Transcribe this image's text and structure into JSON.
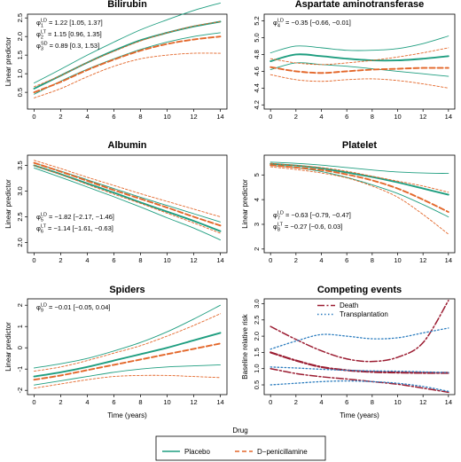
{
  "chart_data": [
    {
      "type": "line",
      "title": "Bilirubin",
      "xlabel": "",
      "ylabel": "Linear predictor",
      "xlim": [
        -0.5,
        14.5
      ],
      "ylim": [
        0.05,
        2.6
      ],
      "xticks": [
        0,
        2,
        4,
        6,
        8,
        10,
        12,
        14
      ],
      "yticks": [
        0.5,
        1.0,
        1.5,
        2.0,
        2.5
      ],
      "annotations": [
        {
          "sym": "φ",
          "sub": "1",
          "sup": "LD",
          "text": " = 1.22 [1.05, 1.37]"
        },
        {
          "sym": "φ",
          "sub": "2",
          "sup": "LT",
          "text": " = 1.15 [0.96, 1.35]"
        },
        {
          "sym": "φ",
          "sub": "3",
          "sup": "SD",
          "text": " = 0.89 [0.3, 1.53]"
        }
      ],
      "x": [
        0,
        2,
        4,
        6,
        8,
        10,
        12,
        14
      ],
      "series": [
        {
          "role": "placebo",
          "values": [
            0.6,
            0.95,
            1.3,
            1.62,
            1.9,
            2.1,
            2.27,
            2.4
          ]
        },
        {
          "role": "placebo",
          "values": [
            0.75,
            1.12,
            1.5,
            1.85,
            2.18,
            2.45,
            2.7,
            2.9
          ]
        },
        {
          "role": "placebo",
          "values": [
            0.45,
            0.8,
            1.12,
            1.4,
            1.65,
            1.85,
            2.0,
            2.1
          ]
        },
        {
          "role": "penicillamine",
          "values": [
            0.5,
            0.78,
            1.1,
            1.38,
            1.62,
            1.8,
            1.92,
            2.0
          ]
        },
        {
          "role": "penicillamine",
          "values": [
            0.65,
            0.95,
            1.3,
            1.6,
            1.88,
            2.1,
            2.28,
            2.4
          ]
        },
        {
          "role": "penicillamine",
          "values": [
            0.35,
            0.6,
            0.92,
            1.2,
            1.4,
            1.5,
            1.55,
            1.55
          ]
        }
      ]
    },
    {
      "type": "line",
      "title": "Aspartate aminotransferase",
      "xlabel": "",
      "ylabel": "",
      "xlim": [
        -0.5,
        14.5
      ],
      "ylim": [
        4.15,
        5.28
      ],
      "xticks": [
        0,
        2,
        4,
        6,
        8,
        10,
        12,
        14
      ],
      "yticks": [
        4.2,
        4.4,
        4.6,
        4.8,
        5.0,
        5.2
      ],
      "annotations": [
        {
          "sym": "φ",
          "sub": "4",
          "sup": "LD",
          "text": " = −0.35 [−0.66, −0.01]"
        }
      ],
      "x": [
        0,
        2,
        4,
        6,
        8,
        10,
        12,
        14
      ],
      "series": [
        {
          "role": "placebo",
          "values": [
            4.72,
            4.8,
            4.78,
            4.75,
            4.73,
            4.73,
            4.75,
            4.78
          ]
        },
        {
          "role": "placebo",
          "values": [
            4.82,
            4.9,
            4.88,
            4.85,
            4.85,
            4.87,
            4.93,
            5.02
          ]
        },
        {
          "role": "placebo",
          "values": [
            4.62,
            4.7,
            4.68,
            4.66,
            4.63,
            4.6,
            4.57,
            4.54
          ]
        },
        {
          "role": "penicillamine",
          "values": [
            4.65,
            4.6,
            4.58,
            4.6,
            4.62,
            4.63,
            4.64,
            4.64
          ]
        },
        {
          "role": "penicillamine",
          "values": [
            4.75,
            4.7,
            4.68,
            4.7,
            4.73,
            4.77,
            4.82,
            4.88
          ]
        },
        {
          "role": "penicillamine",
          "values": [
            4.56,
            4.5,
            4.48,
            4.5,
            4.51,
            4.49,
            4.45,
            4.4
          ]
        }
      ]
    },
    {
      "type": "line",
      "title": "Albumin",
      "xlabel": "",
      "ylabel": "Linear predictor",
      "xlim": [
        -0.5,
        14.5
      ],
      "ylim": [
        1.8,
        3.7
      ],
      "xticks": [
        0,
        2,
        4,
        6,
        8,
        10,
        12,
        14
      ],
      "yticks": [
        2.0,
        2.5,
        3.0,
        3.5
      ],
      "annotations": [
        {
          "sym": "φ",
          "sub": "5",
          "sup": "LD",
          "text": " = −1.82 [−2.17, −1.46]"
        },
        {
          "sym": "φ",
          "sub": "6",
          "sup": "LT",
          "text": " = −1.14 [−1.61, −0.63]"
        }
      ],
      "x": [
        0,
        2,
        4,
        6,
        8,
        10,
        12,
        14
      ],
      "series": [
        {
          "role": "placebo",
          "values": [
            3.5,
            3.33,
            3.15,
            2.97,
            2.78,
            2.6,
            2.42,
            2.22
          ]
        },
        {
          "role": "placebo",
          "values": [
            3.55,
            3.39,
            3.22,
            3.05,
            2.88,
            2.72,
            2.56,
            2.4
          ]
        },
        {
          "role": "placebo",
          "values": [
            3.45,
            3.27,
            3.08,
            2.89,
            2.69,
            2.48,
            2.28,
            2.05
          ]
        },
        {
          "role": "penicillamine",
          "values": [
            3.55,
            3.38,
            3.2,
            3.02,
            2.85,
            2.68,
            2.5,
            2.33
          ]
        },
        {
          "role": "penicillamine",
          "values": [
            3.6,
            3.44,
            3.27,
            3.11,
            2.95,
            2.8,
            2.65,
            2.5
          ]
        },
        {
          "role": "penicillamine",
          "values": [
            3.5,
            3.32,
            3.13,
            2.94,
            2.76,
            2.57,
            2.38,
            2.18
          ]
        }
      ]
    },
    {
      "type": "line",
      "title": "Platelet",
      "xlabel": "",
      "ylabel": "Linear predictor",
      "xlim": [
        -0.5,
        14.5
      ],
      "ylim": [
        1.85,
        5.8
      ],
      "xticks": [
        0,
        2,
        4,
        6,
        8,
        10,
        12,
        14
      ],
      "yticks": [
        2,
        3,
        4,
        5
      ],
      "annotations": [
        {
          "sym": "φ",
          "sub": "7",
          "sup": "LD",
          "text": " = −0.63 [−0.79, −0.47]"
        },
        {
          "sym": "φ",
          "sub": "8",
          "sup": "LT",
          "text": " = −0.27 [−0.6, 0.03]"
        }
      ],
      "x": [
        0,
        2,
        4,
        6,
        8,
        10,
        12,
        14
      ],
      "series": [
        {
          "role": "placebo",
          "values": [
            5.45,
            5.38,
            5.27,
            5.1,
            4.92,
            4.7,
            4.45,
            4.2
          ]
        },
        {
          "role": "placebo",
          "values": [
            5.52,
            5.47,
            5.4,
            5.3,
            5.2,
            5.12,
            5.08,
            5.06
          ]
        },
        {
          "role": "placebo",
          "values": [
            5.38,
            5.29,
            5.14,
            4.9,
            4.6,
            4.25,
            3.8,
            3.3
          ]
        },
        {
          "role": "penicillamine",
          "values": [
            5.4,
            5.3,
            5.2,
            5.02,
            4.78,
            4.45,
            4.0,
            3.5
          ]
        },
        {
          "role": "penicillamine",
          "values": [
            5.47,
            5.39,
            5.3,
            5.15,
            4.95,
            4.75,
            4.55,
            4.3
          ]
        },
        {
          "role": "penicillamine",
          "values": [
            5.33,
            5.22,
            5.08,
            4.88,
            4.55,
            4.1,
            3.4,
            2.6
          ]
        }
      ]
    },
    {
      "type": "line",
      "title": "Spiders",
      "xlabel": "Time (years)",
      "ylabel": "Linear predictor",
      "xlim": [
        -0.5,
        14.5
      ],
      "ylim": [
        -2.2,
        2.3
      ],
      "xticks": [
        0,
        2,
        4,
        6,
        8,
        10,
        12,
        14
      ],
      "yticks": [
        -2,
        -1,
        0,
        1,
        2
      ],
      "annotations": [
        {
          "sym": "φ",
          "sub": "9",
          "sup": "LD",
          "text": " = −0.01 [−0.05, 0.04]"
        }
      ],
      "x": [
        0,
        2,
        4,
        6,
        8,
        10,
        12,
        14
      ],
      "series": [
        {
          "role": "placebo",
          "values": [
            -1.35,
            -1.15,
            -0.9,
            -0.6,
            -0.3,
            0.0,
            0.35,
            0.7
          ]
        },
        {
          "role": "placebo",
          "values": [
            -0.95,
            -0.75,
            -0.5,
            -0.15,
            0.25,
            0.75,
            1.35,
            2.0
          ]
        },
        {
          "role": "placebo",
          "values": [
            -1.75,
            -1.55,
            -1.35,
            -1.15,
            -1.0,
            -0.9,
            -0.85,
            -0.8
          ]
        },
        {
          "role": "penicillamine",
          "values": [
            -1.5,
            -1.3,
            -1.05,
            -0.8,
            -0.55,
            -0.3,
            -0.05,
            0.2
          ]
        },
        {
          "role": "penicillamine",
          "values": [
            -1.1,
            -0.9,
            -0.6,
            -0.25,
            0.1,
            0.55,
            1.05,
            1.6
          ]
        },
        {
          "role": "penicillamine",
          "values": [
            -1.9,
            -1.7,
            -1.5,
            -1.35,
            -1.3,
            -1.3,
            -1.35,
            -1.4
          ]
        }
      ]
    },
    {
      "type": "line",
      "title": "Competing events",
      "xlabel": "Time (years)",
      "ylabel": "Baseline relative risk",
      "xlim": [
        -0.5,
        14.5
      ],
      "ylim": [
        0.2,
        3.15
      ],
      "xticks": [
        0,
        2,
        4,
        6,
        8,
        10,
        12,
        14
      ],
      "yticks": [
        0.5,
        1.0,
        1.5,
        2.0,
        2.5,
        3.0
      ],
      "legend": [
        "Death",
        "Transplantation"
      ],
      "legend_position": "top",
      "x": [
        0,
        2,
        4,
        6,
        8,
        10,
        12,
        14
      ],
      "series": [
        {
          "name": "Death",
          "role": "death",
          "values": [
            1.5,
            1.25,
            1.05,
            0.95,
            0.9,
            0.88,
            0.87,
            0.87
          ]
        },
        {
          "name": "Death",
          "role": "death",
          "values": [
            2.3,
            1.9,
            1.55,
            1.3,
            1.22,
            1.35,
            1.8,
            3.1
          ]
        },
        {
          "name": "Death",
          "role": "death",
          "values": [
            1.0,
            0.85,
            0.75,
            0.68,
            0.6,
            0.52,
            0.4,
            0.27
          ]
        },
        {
          "name": "Transplantation",
          "role": "transplant",
          "values": [
            1.05,
            1.02,
            0.98,
            0.95,
            0.93,
            0.92,
            0.9,
            0.88
          ]
        },
        {
          "name": "Transplantation",
          "role": "transplant",
          "values": [
            1.6,
            1.85,
            2.05,
            2.0,
            1.92,
            1.95,
            2.1,
            2.25
          ]
        },
        {
          "name": "Transplantation",
          "role": "transplant",
          "values": [
            0.5,
            0.55,
            0.6,
            0.62,
            0.6,
            0.55,
            0.45,
            0.3
          ]
        }
      ]
    }
  ],
  "legend": {
    "title": "Drug",
    "items": [
      {
        "label": "Placebo",
        "style": "solid"
      },
      {
        "label": "D−penicillamine",
        "style": "dashed"
      }
    ]
  },
  "colors": {
    "placebo": "#1f9e80",
    "penicillamine": "#e3672a",
    "death": "#9b1c31",
    "transplant": "#2c7dbf"
  }
}
